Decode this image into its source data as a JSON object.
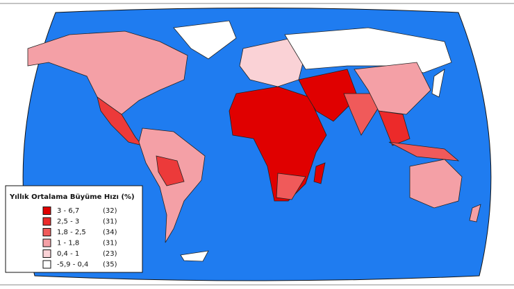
{
  "legend": {
    "title": "Yıllık Ortalama Büyüme Hızı (%)",
    "items": [
      {
        "range": "3    - 6,7",
        "count": "(32)",
        "color": "#e00000"
      },
      {
        "range": "2,5 - 3",
        "count": "(31)",
        "color": "#ec2a2a"
      },
      {
        "range": "1,8 - 2,5",
        "count": "(34)",
        "color": "#f05a5a"
      },
      {
        "range": "1    - 1,8",
        "count": "(31)",
        "color": "#f4a0a6"
      },
      {
        "range": "0,4 - 1",
        "count": "(23)",
        "color": "#fad2d6"
      },
      {
        "range": "-5,9 - 0,4",
        "count": "(35)",
        "color": "#ffffff"
      }
    ]
  }
}
